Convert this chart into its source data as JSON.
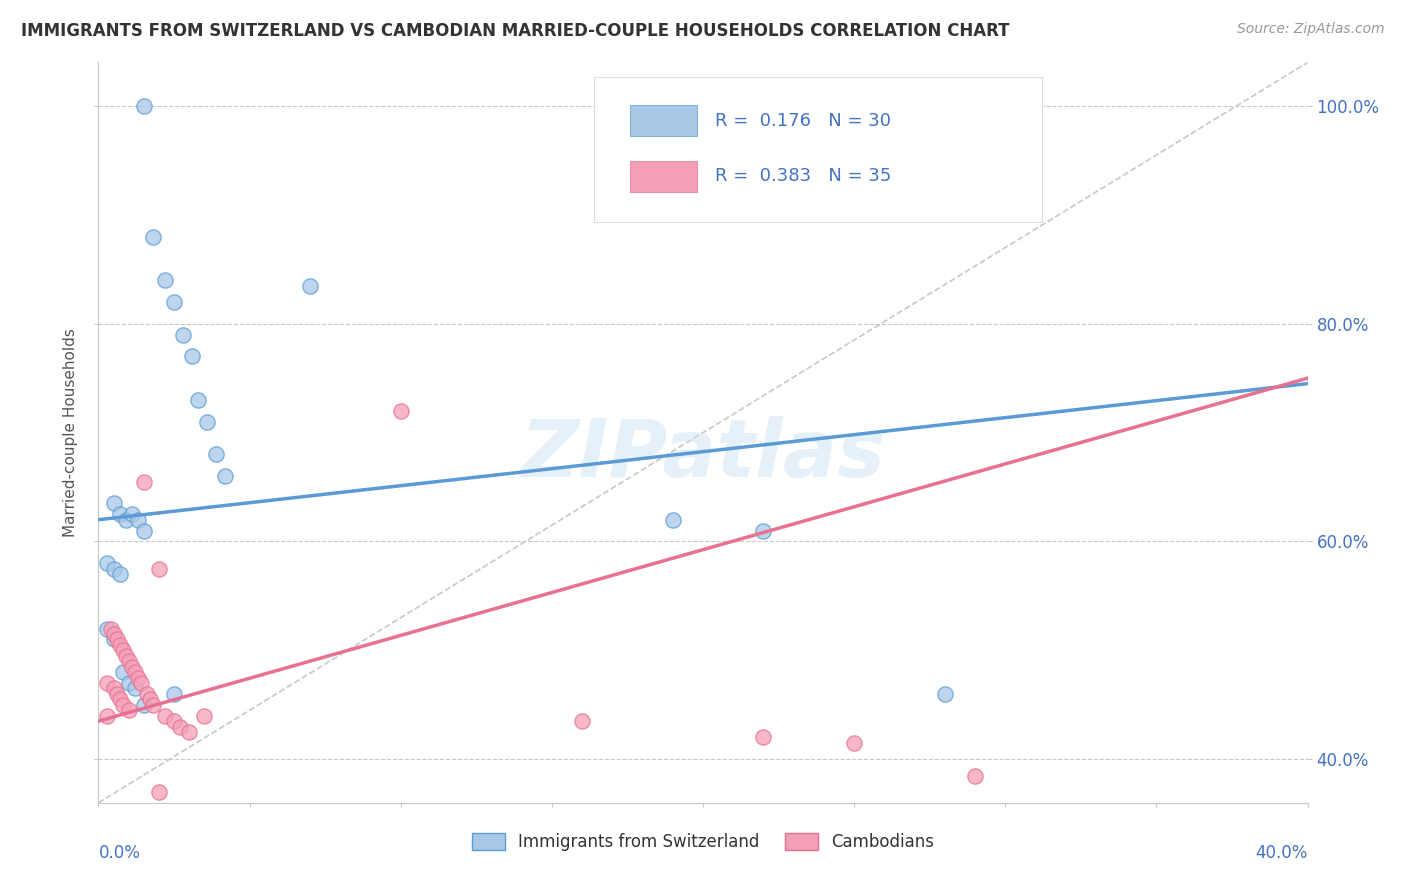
{
  "title": "IMMIGRANTS FROM SWITZERLAND VS CAMBODIAN MARRIED-COUPLE HOUSEHOLDS CORRELATION CHART",
  "source": "Source: ZipAtlas.com",
  "ylabel": "Married-couple Households",
  "legend_blue_label": "Immigrants from Switzerland",
  "legend_pink_label": "Cambodians",
  "R_blue": 0.176,
  "N_blue": 30,
  "R_pink": 0.383,
  "N_pink": 35,
  "color_blue": "#A8C8E8",
  "color_pink": "#F4A0B8",
  "color_blue_line": "#5B9BD5",
  "color_pink_line": "#F4A0B8",
  "color_axis_text": "#4472C4",
  "ref_line_color": "#C8C8C8",
  "background_color": "#FFFFFF",
  "watermark": "ZIPatlas",
  "xlim": [
    0,
    40
  ],
  "ylim": [
    36,
    104
  ],
  "yticks": [
    40,
    60,
    80,
    100
  ],
  "blue_trend_x0": 0,
  "blue_trend_y0": 62.0,
  "blue_trend_x1": 40,
  "blue_trend_y1": 74.5,
  "pink_trend_x0": 0,
  "pink_trend_y0": 43.5,
  "pink_trend_x1": 40,
  "pink_trend_y1": 75.0,
  "blue_x": [
    1.5,
    1.8,
    2.1,
    2.4,
    2.7,
    3.0,
    3.3,
    3.6,
    3.9,
    4.2,
    0.3,
    0.5,
    0.7,
    0.8,
    0.9,
    1.0,
    1.1,
    1.2,
    1.3,
    1.4,
    0.4,
    0.6,
    0.85,
    1.05,
    1.25,
    7.0,
    19.0,
    22.0,
    25.0,
    28.0
  ],
  "blue_y": [
    100.0,
    88.5,
    83.5,
    81.0,
    78.5,
    75.5,
    73.0,
    70.5,
    68.0,
    65.5,
    62.5,
    60.5,
    59.0,
    57.5,
    56.0,
    54.0,
    52.5,
    51.0,
    49.5,
    48.0,
    47.0,
    46.5,
    45.5,
    44.5,
    44.0,
    84.0,
    62.0,
    60.5,
    46.0,
    53.0
  ],
  "pink_x": [
    0.3,
    0.4,
    0.5,
    0.6,
    0.7,
    0.8,
    0.9,
    1.0,
    1.1,
    1.2,
    1.3,
    1.4,
    1.5,
    1.6,
    1.7,
    1.8,
    1.9,
    2.0,
    2.1,
    2.2,
    2.3,
    2.4,
    2.5,
    2.6,
    2.7,
    2.8,
    3.0,
    3.5,
    4.0,
    10.0,
    16.0,
    18.0,
    22.0,
    26.0,
    30.0
  ],
  "pink_y": [
    47.0,
    46.5,
    46.0,
    53.0,
    52.5,
    52.0,
    51.5,
    51.0,
    50.5,
    50.0,
    49.5,
    49.0,
    65.5,
    48.5,
    48.0,
    47.5,
    47.0,
    46.5,
    46.0,
    45.5,
    44.5,
    44.0,
    57.5,
    43.5,
    43.0,
    42.5,
    42.0,
    44.5,
    41.0,
    72.0,
    43.5,
    43.0,
    42.5,
    42.0,
    38.5
  ]
}
